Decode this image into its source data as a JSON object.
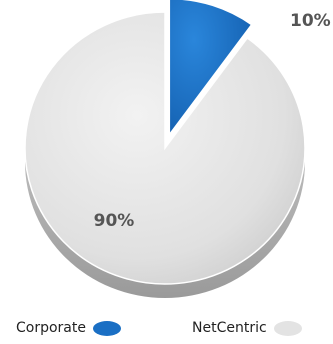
{
  "chart_data": {
    "type": "pie",
    "categories": [
      "Corporate",
      "NetCentric"
    ],
    "values": [
      10,
      90
    ],
    "data_labels": [
      "10%",
      "90%"
    ],
    "colors": [
      "#1a6fc4",
      "#e3e3e3"
    ],
    "exploded": "Corporate",
    "legend_position": "bottom",
    "legend": [
      "Corporate",
      "NetCentric"
    ]
  }
}
